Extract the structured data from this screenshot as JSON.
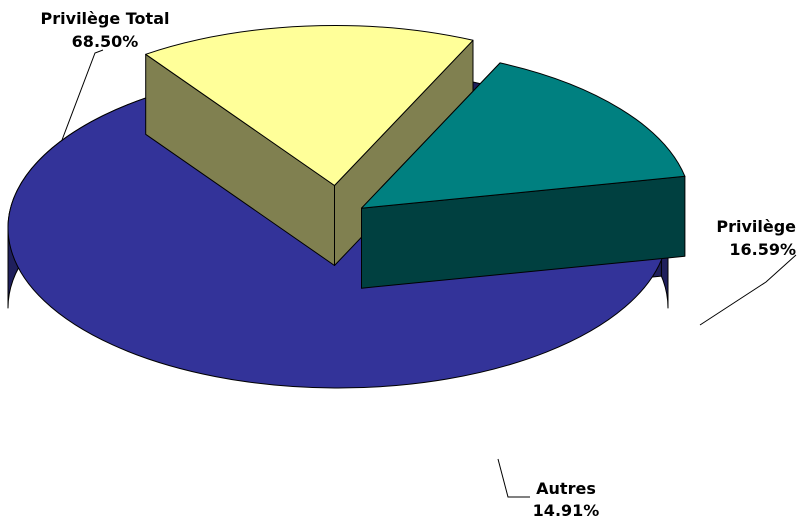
{
  "chart_data": {
    "type": "pie",
    "three_d": true,
    "title": "",
    "slices": [
      {
        "label": "Privilège Total",
        "value": 68.5,
        "display": "68.50%",
        "color": "#333399",
        "side_color": "#1F1F5C",
        "exploded": false
      },
      {
        "label": "Privilège",
        "value": 16.59,
        "display": "16.59%",
        "color": "#FFFF99",
        "side_color": "#808050",
        "exploded": true
      },
      {
        "label": "Autres",
        "value": 14.91,
        "display": "14.91%",
        "color": "#008080",
        "side_color": "#004040",
        "exploded": true
      }
    ],
    "legend": "none"
  }
}
